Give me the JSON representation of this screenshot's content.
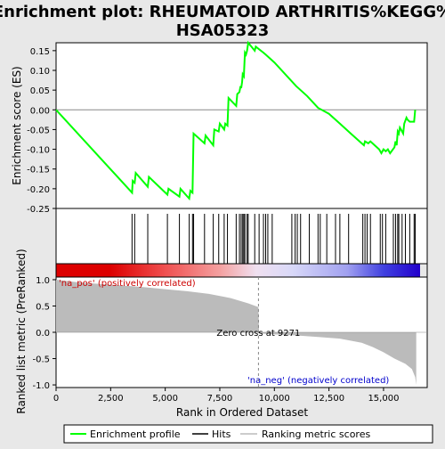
{
  "chart_data": {
    "type": "line",
    "title": "Enrichment plot: RHEUMATOID ARTHRITIS%KEGG%\nHSA05323",
    "title_lines": [
      "Enrichment plot: RHEUMATOID ARTHRITIS%KEGG%",
      "HSA05323"
    ],
    "xlabel": "Rank in Ordered Dataset",
    "ylabel_top": "Enrichment score (ES)",
    "ylabel_bottom": "Ranked list metric (PreRanked)",
    "xlim": [
      0,
      17000
    ],
    "x_ticks": [
      0,
      2500,
      5000,
      7500,
      10000,
      12500,
      15000
    ],
    "x_tick_labels": [
      "0",
      "2,500",
      "5,000",
      "7,500",
      "10,000",
      "12,500",
      "15,000"
    ],
    "es_ylim": [
      -0.25,
      0.17
    ],
    "es_ticks": [
      0.15,
      0.1,
      0.05,
      0.0,
      -0.05,
      -0.1,
      -0.15,
      -0.2,
      -0.25
    ],
    "es_tick_labels": [
      "0.15",
      "0.10",
      "0.05",
      "0.00",
      "-0.05",
      "-0.10",
      "-0.15",
      "-0.20",
      "-0.25"
    ],
    "metric_ylim": [
      -1.05,
      1.05
    ],
    "metric_ticks": [
      1.0,
      0.5,
      0.0,
      -0.5,
      -1.0
    ],
    "metric_tick_labels": [
      "1.0",
      "0.5",
      "0.0",
      "-0.5",
      "-1.0"
    ],
    "enrichment_profile": {
      "x": [
        0,
        3480,
        3510,
        3600,
        3650,
        4200,
        4250,
        5100,
        5150,
        5650,
        5700,
        6100,
        6150,
        6250,
        6300,
        6800,
        6850,
        7200,
        7250,
        7450,
        7500,
        7700,
        7750,
        7850,
        7900,
        8250,
        8300,
        8400,
        8450,
        8480,
        8520,
        8550,
        8600,
        8650,
        8700,
        8750,
        8800,
        9100,
        9150,
        9500,
        9600,
        10000,
        10500,
        11000,
        11500,
        12000,
        12500,
        13000,
        13500,
        14000,
        14100,
        14150,
        14300,
        14400,
        14800,
        14900,
        15000,
        15100,
        15200,
        15300,
        15500,
        15550,
        15600,
        15650,
        15700,
        15750,
        15800,
        15900,
        15950,
        16050,
        16100,
        16200,
        16400,
        16450
      ],
      "y": [
        0.0,
        -0.21,
        -0.18,
        -0.185,
        -0.16,
        -0.195,
        -0.17,
        -0.215,
        -0.2,
        -0.22,
        -0.2,
        -0.225,
        -0.205,
        -0.21,
        -0.06,
        -0.085,
        -0.065,
        -0.09,
        -0.05,
        -0.055,
        -0.035,
        -0.05,
        -0.035,
        -0.04,
        0.03,
        0.01,
        0.04,
        0.045,
        0.06,
        0.055,
        0.07,
        0.09,
        0.085,
        0.145,
        0.14,
        0.15,
        0.17,
        0.15,
        0.16,
        0.145,
        0.14,
        0.12,
        0.09,
        0.06,
        0.035,
        0.005,
        -0.01,
        -0.035,
        -0.06,
        -0.085,
        -0.09,
        -0.08,
        -0.085,
        -0.08,
        -0.1,
        -0.11,
        -0.1,
        -0.105,
        -0.1,
        -0.11,
        -0.095,
        -0.08,
        -0.09,
        -0.055,
        -0.06,
        -0.045,
        -0.05,
        -0.06,
        -0.035,
        -0.02,
        -0.025,
        -0.03,
        -0.03,
        0.0
      ]
    },
    "hits": [
      3480,
      3600,
      4200,
      5100,
      5650,
      6100,
      6250,
      6300,
      6800,
      7200,
      7450,
      7700,
      7850,
      8250,
      8400,
      8480,
      8550,
      8600,
      8650,
      8750,
      8800,
      9100,
      9300,
      9500,
      9600,
      9700,
      9900,
      10800,
      10950,
      11050,
      11200,
      11600,
      12000,
      12100,
      12400,
      12800,
      13000,
      13400,
      14050,
      14150,
      14250,
      14400,
      14850,
      14950,
      15100,
      15450,
      15550,
      15650,
      15700,
      15850,
      16000,
      16200,
      16400,
      16450
    ],
    "zero_cross_rank": 9271,
    "ranked_metric": {
      "x": [
        0,
        1000,
        2000,
        3000,
        4000,
        5000,
        6000,
        7000,
        8000,
        8800,
        9271,
        9300,
        10000,
        11000,
        12000,
        13000,
        14000,
        14500,
        15000,
        15500,
        16000,
        16300,
        16450,
        16500
      ],
      "y": [
        1.0,
        0.95,
        0.92,
        0.89,
        0.86,
        0.82,
        0.78,
        0.73,
        0.65,
        0.55,
        0.48,
        -0.02,
        -0.04,
        -0.06,
        -0.09,
        -0.12,
        -0.2,
        -0.28,
        -0.38,
        -0.5,
        -0.6,
        -0.7,
        -0.85,
        -1.0
      ]
    },
    "annotations": {
      "na_pos": "'na_pos' (positively correlated)",
      "na_neg": "'na_neg' (negatively correlated)",
      "zero_cross": "Zero cross at 9271"
    },
    "legend": {
      "placement": "bottom",
      "items": [
        {
          "label": "Enrichment profile",
          "color": "#00ff00"
        },
        {
          "label": "Hits",
          "color": "#000000"
        },
        {
          "label": "Ranking metric scores",
          "color": "#bbbbbb"
        }
      ]
    },
    "colors": {
      "profile": "#00ff00",
      "hit": "#000000",
      "metric": "#bbbbbb",
      "pos_label": "#cc0000",
      "neg_label": "#0000cc",
      "heat_pos": "#dd0000",
      "heat_neg": "#2200cc"
    }
  }
}
